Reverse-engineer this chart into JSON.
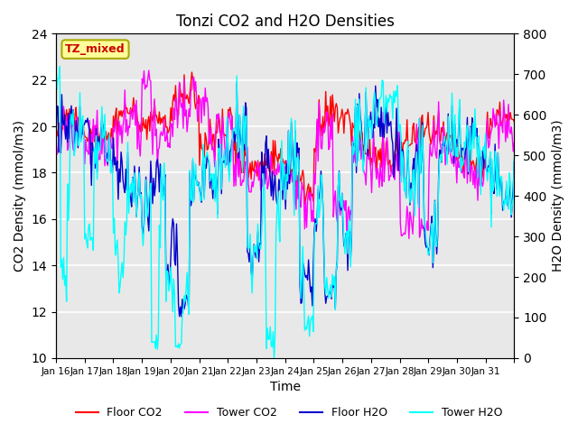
{
  "title": "Tonzi CO2 and H2O Densities",
  "xlabel": "Time",
  "ylabel_left": "CO2 Density (mmol/m3)",
  "ylabel_right": "H2O Density (mmol/m3)",
  "annotation": "TZ_mixed",
  "x_tick_labels": [
    "Jan 16",
    "Jan 17",
    "Jan 18",
    "Jan 19",
    "Jan 20",
    "Jan 21",
    "Jan 22",
    "Jan 23",
    "Jan 24",
    "Jan 25",
    "Jan 26",
    "Jan 27",
    "Jan 28",
    "Jan 29",
    "Jan 30",
    "Jan 31"
  ],
  "ylim_left": [
    10,
    24
  ],
  "ylim_right": [
    0,
    800
  ],
  "yticks_left": [
    10,
    12,
    14,
    16,
    18,
    20,
    22,
    24
  ],
  "yticks_right": [
    0,
    100,
    200,
    300,
    400,
    500,
    600,
    700,
    800
  ],
  "colors": {
    "floor_co2": "#ff0000",
    "tower_co2": "#ff00ff",
    "floor_h2o": "#0000cc",
    "tower_h2o": "#00ffff"
  },
  "legend_labels": [
    "Floor CO2",
    "Tower CO2",
    "Floor H2O",
    "Tower H2O"
  ],
  "background_color": "#e8e8e8",
  "plot_bg_color": "#e8e8e8",
  "grid_color": "#ffffff",
  "annotation_bg": "#ffff99",
  "annotation_border": "#aaaa00",
  "annotation_text_color": "#cc0000",
  "linewidth": 1.0,
  "n_points": 480,
  "seed": 42
}
